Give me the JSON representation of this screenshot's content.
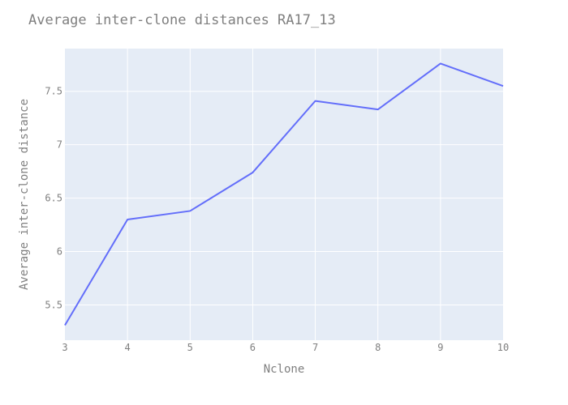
{
  "chart_data": {
    "type": "line",
    "title": "Average inter-clone distances RA17_13",
    "xlabel": "Nclone",
    "ylabel": "Average inter-clone distance",
    "x": [
      3,
      4,
      5,
      6,
      7,
      8,
      9,
      10
    ],
    "series": [
      {
        "values": [
          5.31,
          6.3,
          6.38,
          6.74,
          7.41,
          7.33,
          7.76,
          7.55
        ]
      }
    ],
    "xlim": [
      3,
      10
    ],
    "ylim": [
      5.17,
      7.9
    ],
    "xticks": [
      3,
      4,
      5,
      6,
      7,
      8,
      9,
      10
    ],
    "yticks": [
      5.5,
      6,
      6.5,
      7,
      7.5
    ],
    "xtick_labels": [
      "3",
      "4",
      "5",
      "6",
      "7",
      "8",
      "9",
      "10"
    ],
    "ytick_labels": [
      "5.5",
      "6",
      "6.5",
      "7",
      "7.5"
    ],
    "grid": true,
    "legend": "none",
    "colors": {
      "line": "#636efa",
      "plot_bg": "#e5ecf6",
      "grid": "#ffffff",
      "text": "#7f7f7f"
    }
  }
}
